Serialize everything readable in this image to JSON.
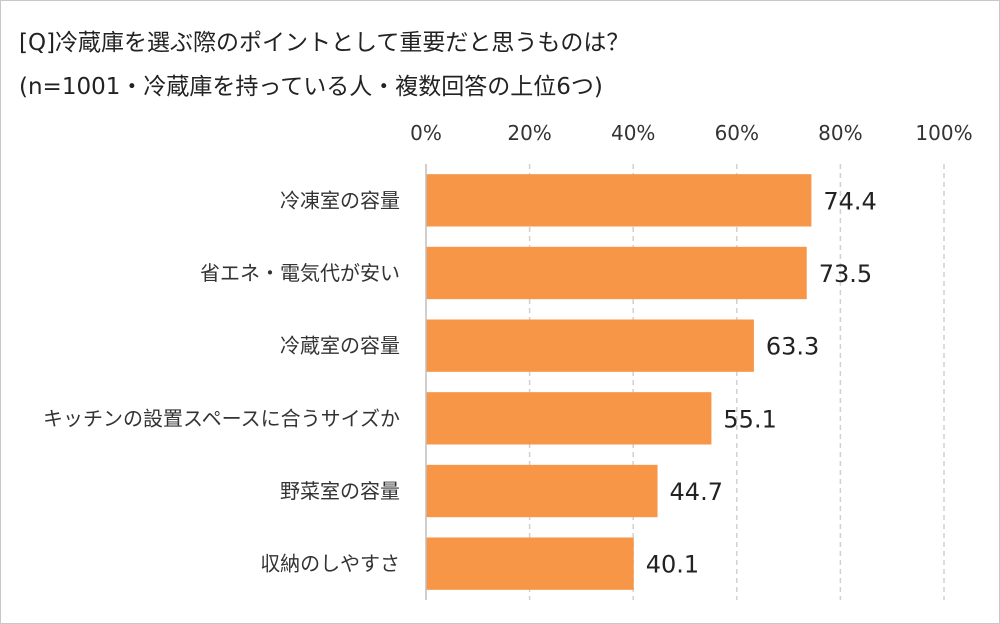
{
  "header": {
    "line1": "[Q]冷蔵庫を選ぶ際のポイントとして重要だと思うものは？",
    "line2": "(n=1001・冷蔵庫を持っている人・複数回答の上位6つ)"
  },
  "chart_data": {
    "type": "bar",
    "orientation": "horizontal",
    "title": "[Q]冷蔵庫を選ぶ際のポイントとして重要だと思うものは？",
    "subtitle": "(n=1001・冷蔵庫を持っている人・複数回答の上位6つ)",
    "categories": [
      "冷凍室の容量",
      "省エネ・電気代が安い",
      "冷蔵室の容量",
      "キッチンの設置スペースに合うサイズか",
      "野菜室の容量",
      "収納のしやすさ"
    ],
    "values": [
      74.4,
      73.5,
      63.3,
      55.1,
      44.7,
      40.1
    ],
    "data_labels": [
      "74.4",
      "73.5",
      "63.3",
      "55.1",
      "44.7",
      "40.1"
    ],
    "xlim": [
      0,
      100
    ],
    "x_ticks": [
      0,
      20,
      40,
      60,
      80,
      100
    ],
    "x_tick_labels": [
      "0%",
      "20%",
      "40%",
      "60%",
      "80%",
      "100%"
    ],
    "axis_position": "top",
    "grid": "vertical dashed",
    "legend": "none",
    "bar_color": "#F79646",
    "grid_color": "#d0d0d0"
  }
}
